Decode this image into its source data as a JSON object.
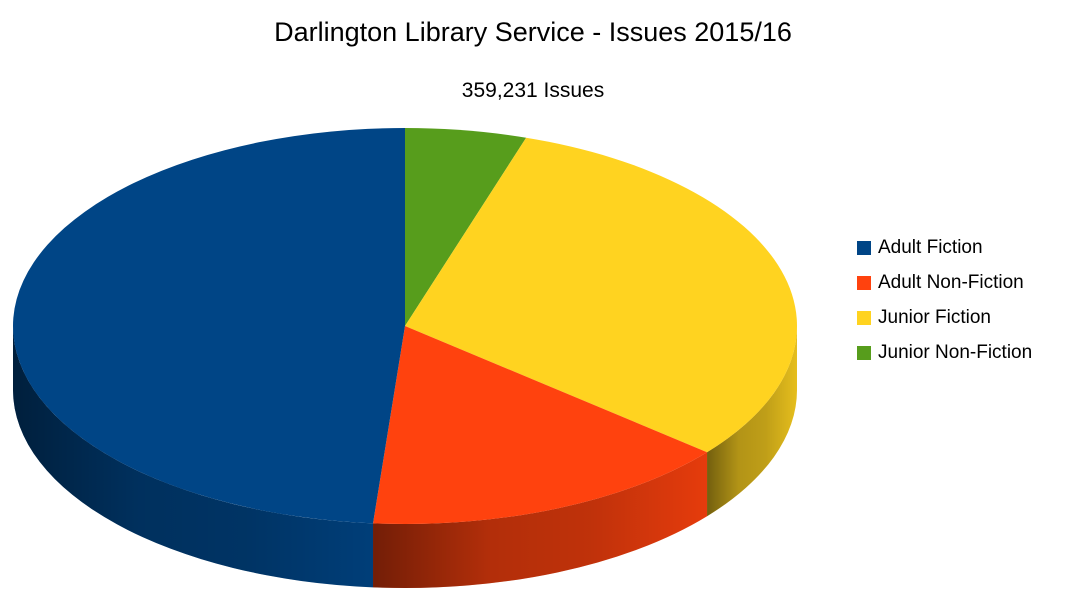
{
  "chart_data": {
    "type": "pie",
    "title": "Darlington Library Service - Issues 2015/16",
    "subtitle": "359,231 Issues",
    "style": "3d",
    "legend_position": "right",
    "categories": [
      "Adult Fiction",
      "Adult Non-Fiction",
      "Junior Fiction",
      "Junior Non-Fiction"
    ],
    "values": [
      48.7,
      15.3,
      31.0,
      5.0
    ],
    "colors": [
      "#004586",
      "#ff420e",
      "#ffd320",
      "#579d1c"
    ]
  }
}
